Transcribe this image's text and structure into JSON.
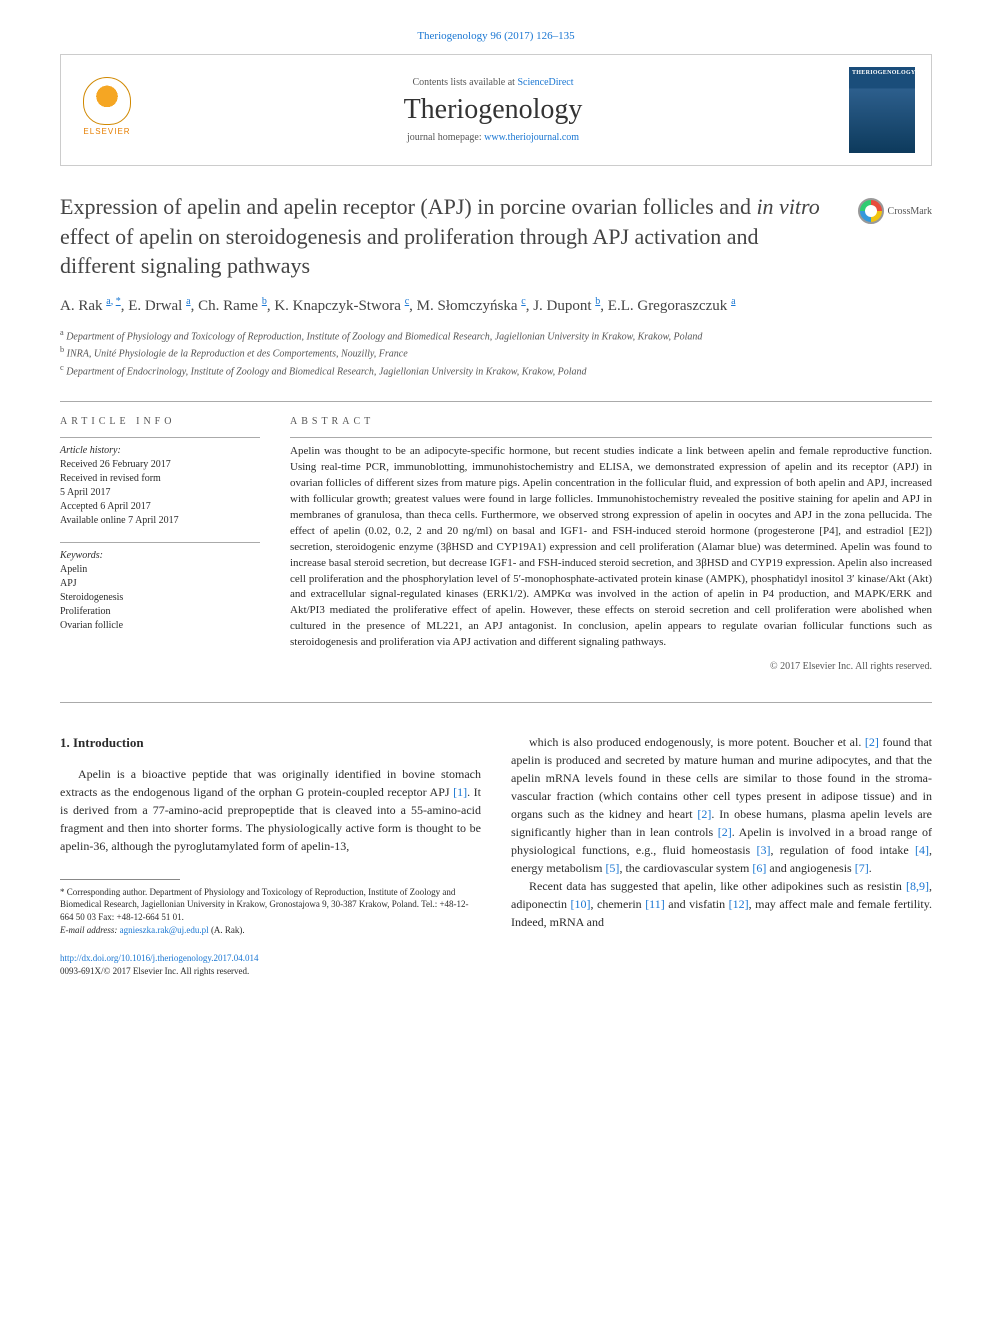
{
  "citation": "Theriogenology 96 (2017) 126–135",
  "header": {
    "publisher": "ELSEVIER",
    "contents_prefix": "Contents lists available at ",
    "contents_link": "ScienceDirect",
    "journal": "Theriogenology",
    "homepage_prefix": "journal homepage: ",
    "homepage_link": "www.theriojournal.com",
    "cover_title": "THERIOGENOLOGY"
  },
  "crossmark": "CrossMark",
  "title": "Expression of apelin and apelin receptor (APJ) in porcine ovarian follicles and in vitro effect of apelin on steroidogenesis and proliferation through APJ activation and different signaling pathways",
  "authors_html": "A. Rak <sup>a, *</sup>, E. Drwal <sup>a</sup>, Ch. Rame <sup>b</sup>, K. Knapczyk-Stwora <sup>c</sup>, M. Słomczyńska <sup>c</sup>, J. Dupont <sup>b</sup>, E.L. Gregoraszczuk <sup>a</sup>",
  "affiliations": [
    {
      "sup": "a",
      "text": "Department of Physiology and Toxicology of Reproduction, Institute of Zoology and Biomedical Research, Jagiellonian University in Krakow, Krakow, Poland"
    },
    {
      "sup": "b",
      "text": "INRA, Unité Physiologie de la Reproduction et des Comportements, Nouzilly, France"
    },
    {
      "sup": "c",
      "text": "Department of Endocrinology, Institute of Zoology and Biomedical Research, Jagiellonian University in Krakow, Krakow, Poland"
    }
  ],
  "info": {
    "label": "ARTICLE INFO",
    "history_label": "Article history:",
    "history": [
      "Received 26 February 2017",
      "Received in revised form",
      "5 April 2017",
      "Accepted 6 April 2017",
      "Available online 7 April 2017"
    ],
    "keywords_label": "Keywords:",
    "keywords": [
      "Apelin",
      "APJ",
      "Steroidogenesis",
      "Proliferation",
      "Ovarian follicle"
    ]
  },
  "abstract": {
    "label": "ABSTRACT",
    "text": "Apelin was thought to be an adipocyte-specific hormone, but recent studies indicate a link between apelin and female reproductive function. Using real-time PCR, immunoblotting, immunohistochemistry and ELISA, we demonstrated expression of apelin and its receptor (APJ) in ovarian follicles of different sizes from mature pigs. Apelin concentration in the follicular fluid, and expression of both apelin and APJ, increased with follicular growth; greatest values were found in large follicles. Immunohistochemistry revealed the positive staining for apelin and APJ in membranes of granulosa, than theca cells. Furthermore, we observed strong expression of apelin in oocytes and APJ in the zona pellucida. The effect of apelin (0.02, 0.2, 2 and 20 ng/ml) on basal and IGF1- and FSH-induced steroid hormone (progesterone [P4], and estradiol [E2]) secretion, steroidogenic enzyme (3βHSD and CYP19A1) expression and cell proliferation (Alamar blue) was determined. Apelin was found to increase basal steroid secretion, but decrease IGF1- and FSH-induced steroid secretion, and 3βHSD and CYP19 expression. Apelin also increased cell proliferation and the phosphorylation level of 5′-monophosphate-activated protein kinase (AMPK), phosphatidyl inositol 3′ kinase/Akt (Akt) and extracellular signal-regulated kinases (ERK1/2). AMPKα was involved in the action of apelin in P4 production, and MAPK/ERK and Akt/PI3 mediated the proliferative effect of apelin. However, these effects on steroid secretion and cell proliferation were abolished when cultured in the presence of ML221, an APJ antagonist. In conclusion, apelin appears to regulate ovarian follicular functions such as steroidogenesis and proliferation via APJ activation and different signaling pathways.",
    "copyright": "© 2017 Elsevier Inc. All rights reserved."
  },
  "body": {
    "heading": "1. Introduction",
    "col1_p1": "Apelin is a bioactive peptide that was originally identified in bovine stomach extracts as the endogenous ligand of the orphan G protein-coupled receptor APJ [1]. It is derived from a 77-amino-acid prepropeptide that is cleaved into a 55-amino-acid fragment and then into shorter forms. The physiologically active form is thought to be apelin-36, although the pyroglutamylated form of apelin-13,",
    "col2_p1": "which is also produced endogenously, is more potent. Boucher et al. [2] found that apelin is produced and secreted by mature human and murine adipocytes, and that the apelin mRNA levels found in these cells are similar to those found in the stroma-vascular fraction (which contains other cell types present in adipose tissue) and in organs such as the kidney and heart [2]. In obese humans, plasma apelin levels are significantly higher than in lean controls [2]. Apelin is involved in a broad range of physiological functions, e.g., fluid homeostasis [3], regulation of food intake [4], energy metabolism [5], the cardiovascular system [6] and angiogenesis [7].",
    "col2_p2": "Recent data has suggested that apelin, like other adipokines such as resistin [8,9], adiponectin [10], chemerin [11] and visfatin [12], may affect male and female fertility. Indeed, mRNA and"
  },
  "corresponding": {
    "star": "*",
    "text": "Corresponding author. Department of Physiology and Toxicology of Reproduction, Institute of Zoology and Biomedical Research, Jagiellonian University in Krakow, Gronostajowa 9, 30-387 Krakow, Poland. Tel.: +48-12-664 50 03 Fax: +48-12-664 51 01.",
    "email_label": "E-mail address:",
    "email": "agnieszka.rak@uj.edu.pl",
    "email_suffix": "(A. Rak)."
  },
  "doi": {
    "link": "http://dx.doi.org/10.1016/j.theriogenology.2017.04.014",
    "issn": "0093-691X/© 2017 Elsevier Inc. All rights reserved."
  },
  "colors": {
    "link": "#1976d2",
    "text": "#2a2a2a",
    "muted": "#555",
    "rule": "#aaa"
  }
}
